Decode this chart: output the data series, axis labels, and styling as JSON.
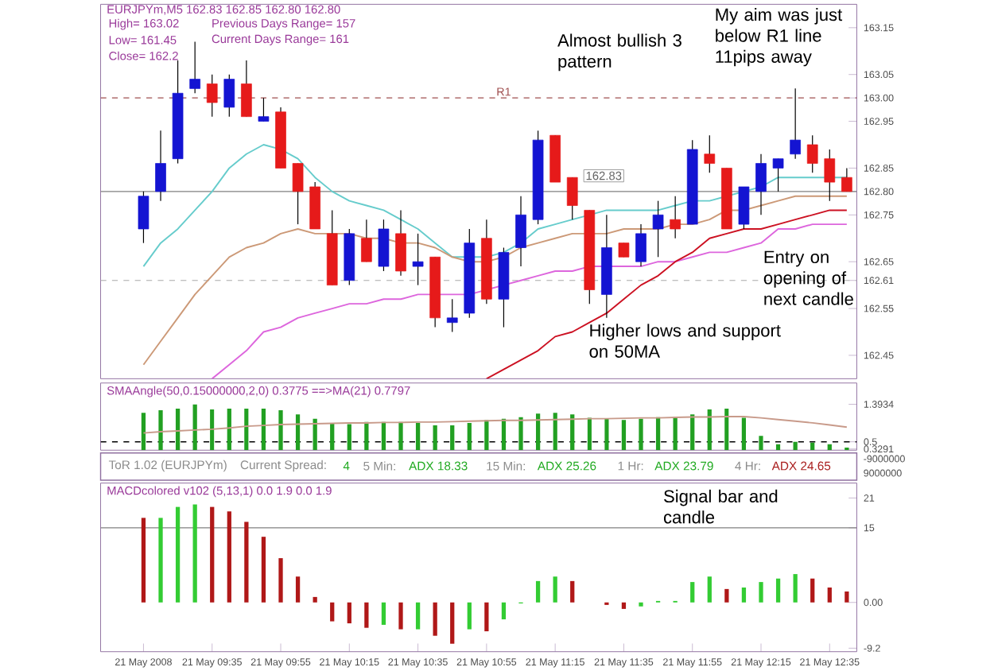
{
  "chart_data": [
    {
      "type": "candlestick",
      "title": "EURJPYm,M5  162.83 162.85 162.80 162.80",
      "categories": [
        null,
        null,
        null,
        null,
        null,
        null,
        null,
        null,
        null,
        null,
        null,
        null,
        null,
        null,
        null,
        null,
        null,
        null,
        null,
        null,
        null,
        null,
        null,
        null,
        null,
        null,
        null,
        null,
        null,
        null,
        null,
        null,
        null,
        null,
        null,
        null,
        null,
        null,
        null,
        null,
        null,
        null
      ],
      "ohlc": [
        [
          162.72,
          162.8,
          162.69,
          162.79
        ],
        [
          162.8,
          162.93,
          162.78,
          162.86
        ],
        [
          162.87,
          163.08,
          162.86,
          163.01
        ],
        [
          163.02,
          163.12,
          163.01,
          163.04
        ],
        [
          163.03,
          163.05,
          162.96,
          162.99
        ],
        [
          162.98,
          163.05,
          162.96,
          163.04
        ],
        [
          163.03,
          163.08,
          162.96,
          162.96
        ],
        [
          162.95,
          163.0,
          162.95,
          162.96
        ],
        [
          162.97,
          162.98,
          162.85,
          162.85
        ],
        [
          162.86,
          162.86,
          162.73,
          162.8
        ],
        [
          162.81,
          162.82,
          162.72,
          162.72
        ],
        [
          162.71,
          162.76,
          162.6,
          162.6
        ],
        [
          162.61,
          162.72,
          162.6,
          162.71
        ],
        [
          162.7,
          162.74,
          162.65,
          162.65
        ],
        [
          162.64,
          162.74,
          162.63,
          162.72
        ],
        [
          162.71,
          162.76,
          162.62,
          162.63
        ],
        [
          162.64,
          162.71,
          162.6,
          162.65
        ],
        [
          162.66,
          162.66,
          162.51,
          162.53
        ],
        [
          162.52,
          162.57,
          162.5,
          162.53
        ],
        [
          162.54,
          162.72,
          162.53,
          162.69
        ],
        [
          162.7,
          162.74,
          162.56,
          162.57
        ],
        [
          162.57,
          162.68,
          162.51,
          162.67
        ],
        [
          162.68,
          162.79,
          162.64,
          162.75
        ],
        [
          162.74,
          162.93,
          162.73,
          162.91
        ],
        [
          162.92,
          162.92,
          162.82,
          162.82
        ],
        [
          162.83,
          162.83,
          162.74,
          162.77
        ],
        [
          162.76,
          162.76,
          162.56,
          162.59
        ],
        [
          162.58,
          162.75,
          162.53,
          162.68
        ],
        [
          162.69,
          162.69,
          162.66,
          162.66
        ],
        [
          162.65,
          162.73,
          162.64,
          162.71
        ],
        [
          162.72,
          162.78,
          162.66,
          162.75
        ],
        [
          162.74,
          162.79,
          162.7,
          162.72
        ],
        [
          162.73,
          162.91,
          162.73,
          162.89
        ],
        [
          162.88,
          162.92,
          162.84,
          162.86
        ],
        [
          162.85,
          162.85,
          162.72,
          162.72
        ],
        [
          162.73,
          162.81,
          162.72,
          162.81
        ],
        [
          162.8,
          162.88,
          162.75,
          162.86
        ],
        [
          162.85,
          162.87,
          162.8,
          162.87
        ],
        [
          162.88,
          163.02,
          162.87,
          162.91
        ],
        [
          162.9,
          162.92,
          162.84,
          162.86
        ],
        [
          162.87,
          162.89,
          162.78,
          162.82
        ],
        [
          162.83,
          162.85,
          162.8,
          162.8
        ]
      ],
      "colors": [
        "#1414d2",
        "#1414d2",
        "#1414d2",
        "#1414d2",
        "#e61a1a",
        "#1414d2",
        "#e61a1a",
        "#1414d2",
        "#e61a1a",
        "#e61a1a",
        "#e61a1a",
        "#e61a1a",
        "#1414d2",
        "#e61a1a",
        "#1414d2",
        "#e61a1a",
        "#1414d2",
        "#e61a1a",
        "#1414d2",
        "#1414d2",
        "#e61a1a",
        "#1414d2",
        "#1414d2",
        "#1414d2",
        "#e61a1a",
        "#e61a1a",
        "#e61a1a",
        "#1414d2",
        "#e61a1a",
        "#1414d2",
        "#1414d2",
        "#e61a1a",
        "#1414d2",
        "#e61a1a",
        "#e61a1a",
        "#1414d2",
        "#1414d2",
        "#1414d2",
        "#1414d2",
        "#e61a1a",
        "#e61a1a",
        "#e61a1a"
      ],
      "series": [
        {
          "type": "line",
          "color": "#66cccc",
          "values": [
            162.64,
            162.69,
            162.72,
            162.76,
            162.8,
            162.85,
            162.88,
            162.9,
            162.89,
            162.87,
            162.83,
            162.8,
            162.78,
            162.77,
            162.76,
            162.74,
            162.72,
            162.69,
            162.66,
            162.66,
            162.66,
            162.67,
            162.69,
            162.72,
            162.73,
            162.74,
            162.75,
            162.76,
            162.76,
            162.76,
            162.76,
            162.77,
            162.78,
            162.78,
            162.79,
            162.8,
            162.81,
            162.83,
            162.83,
            162.83,
            162.83,
            162.83
          ]
        },
        {
          "type": "line",
          "color": "#cc9977",
          "values": [
            162.43,
            162.48,
            162.53,
            162.58,
            162.62,
            162.66,
            162.68,
            162.69,
            162.71,
            162.72,
            162.71,
            162.71,
            162.71,
            162.7,
            162.7,
            162.69,
            162.69,
            162.68,
            162.66,
            162.65,
            162.65,
            162.66,
            162.68,
            162.69,
            162.7,
            162.71,
            162.71,
            162.71,
            162.72,
            162.72,
            162.72,
            162.73,
            162.73,
            162.74,
            162.76,
            162.76,
            162.77,
            162.78,
            162.79,
            162.79,
            162.79,
            162.79
          ]
        },
        {
          "type": "line",
          "color": "#dd66dd",
          "values": [
            null,
            null,
            null,
            null,
            162.4,
            162.43,
            162.46,
            162.5,
            162.51,
            162.53,
            162.54,
            162.55,
            162.56,
            162.56,
            162.57,
            162.57,
            162.58,
            162.58,
            162.58,
            162.58,
            162.59,
            162.6,
            162.61,
            162.62,
            162.63,
            162.63,
            162.64,
            162.64,
            162.64,
            162.64,
            162.65,
            162.65,
            162.66,
            162.67,
            162.67,
            162.68,
            162.69,
            162.72,
            162.72,
            162.73,
            162.73,
            162.73
          ]
        },
        {
          "type": "line",
          "color": "#cc1122",
          "values": [
            null,
            null,
            null,
            null,
            null,
            null,
            null,
            null,
            null,
            null,
            null,
            null,
            null,
            null,
            null,
            null,
            null,
            null,
            null,
            null,
            162.4,
            162.42,
            162.44,
            162.46,
            162.49,
            162.5,
            162.52,
            162.54,
            162.57,
            162.6,
            162.62,
            162.65,
            162.67,
            162.7,
            162.71,
            162.72,
            162.72,
            162.73,
            162.74,
            162.75,
            162.76,
            162.76
          ]
        }
      ],
      "ylim": [
        162.4,
        163.2
      ],
      "yticks": [
        163.15,
        163.05,
        {
          "value": 163.0,
          "label": "163.00"
        },
        162.95,
        162.85,
        {
          "value": 162.8,
          "label": "162.80"
        },
        162.75,
        162.65,
        162.61,
        162.55,
        162.45
      ],
      "ref_lines": [
        {
          "axis": "y",
          "value": 163.0,
          "label": "R1",
          "color": "#a05050",
          "line_style": "dashed"
        },
        {
          "axis": "y",
          "value": 162.8,
          "color": "#808080",
          "line_style": "solid"
        },
        {
          "axis": "y",
          "value": 162.61,
          "color": "#c0c0c0",
          "line_style": "dashed"
        }
      ],
      "tick_labels": "y",
      "annotations": [
        "High= 163.02",
        "Low= 161.45",
        "Close= 162.2",
        "Previous Days Range= 157",
        "Current Days Range= 161",
        "Almost bullish 3 pattern",
        "My aim was just below R1 line 11pips away",
        "Higher lows and support on 50MA",
        "Entry on opening of next candle",
        "162.83"
      ]
    },
    {
      "type": "bar",
      "title": "SMAAngle(50,0.15000000,2,0) 0.3775  ==>MA(21) 0.7797",
      "categories": [
        null,
        null,
        null,
        null,
        null,
        null,
        null,
        null,
        null,
        null,
        null,
        null,
        null,
        null,
        null,
        null,
        null,
        null,
        null,
        null,
        null,
        null,
        null,
        null,
        null,
        null,
        null,
        null,
        null,
        null,
        null,
        null,
        null,
        null,
        null,
        null,
        null,
        null,
        null,
        null,
        null,
        null
      ],
      "series": [
        {
          "type": "bar",
          "color": "#22a022",
          "values": [
            1.19,
            1.25,
            1.29,
            1.39,
            1.27,
            1.29,
            1.29,
            1.29,
            1.25,
            1.15,
            1.05,
            0.95,
            0.92,
            0.97,
            0.97,
            0.97,
            0.95,
            0.89,
            0.89,
            0.95,
            1.02,
            1.05,
            1.09,
            1.17,
            1.19,
            1.15,
            1.07,
            1.05,
            1.02,
            1.05,
            1.09,
            1.09,
            1.15,
            1.27,
            1.29,
            1.07,
            0.64,
            0.44,
            0.5,
            0.48,
            0.44,
            0.36
          ]
        },
        {
          "type": "line",
          "color": "#c89a8a",
          "values": [
            0.71,
            0.74,
            0.76,
            0.78,
            0.8,
            0.83,
            0.87,
            0.89,
            0.91,
            0.92,
            0.93,
            0.94,
            0.95,
            0.95,
            0.96,
            0.96,
            0.97,
            0.97,
            0.98,
            0.99,
            1.0,
            1.01,
            1.01,
            1.02,
            1.03,
            1.04,
            1.05,
            1.05,
            1.06,
            1.07,
            1.07,
            1.08,
            1.09,
            1.09,
            1.1,
            1.1,
            1.07,
            1.03,
            0.99,
            0.95,
            0.9,
            0.85
          ]
        }
      ],
      "ylim": [
        0.3,
        1.9
      ],
      "yticks": [
        1.3934,
        0.5,
        0.3291
      ],
      "ref_lines": [
        {
          "axis": "y",
          "value": 0.5,
          "color": "#000000",
          "line_style": "dashed"
        }
      ],
      "tick_labels": "y"
    },
    {
      "type": "other",
      "annotations": [
        "ToR 1.02 (EURJPYm)",
        "Current Spread:",
        "4",
        "5 Min:",
        "ADX 18.33",
        "15 Min:",
        "ADX 25.26",
        "1 Hr:",
        "ADX 23.79",
        "4 Hr:",
        "ADX 24.65",
        "-9000000",
        "9000000"
      ]
    },
    {
      "type": "bar",
      "title": "MACDcolored v102 (5,13,1) 0.0 1.9 0.0 1.9",
      "categories": [
        "21 May 2008",
        null,
        null,
        null,
        "21 May 09:35",
        null,
        null,
        null,
        "21 May 09:55",
        null,
        null,
        null,
        "21 May 10:15",
        null,
        null,
        null,
        "21 May 10:35",
        null,
        null,
        null,
        "21 May 10:55",
        null,
        null,
        null,
        "21 May 11:15",
        null,
        null,
        null,
        "21 May 11:35",
        null,
        null,
        null,
        "21 May 11:55",
        null,
        null,
        null,
        "21 May 12:15",
        null,
        null,
        null,
        "21 May 12:35",
        null
      ],
      "values": [
        17.0,
        17.0,
        19.2,
        19.7,
        19.2,
        18.3,
        16.2,
        13.2,
        8.9,
        5.2,
        1.1,
        -3.8,
        -4.2,
        -5.1,
        -4.5,
        -5.4,
        -5.4,
        -6.7,
        -8.3,
        -5.4,
        -5.8,
        -3.4,
        -0.2,
        4.3,
        5.2,
        4.3,
        0,
        -0.5,
        -1.3,
        -0.8,
        0.3,
        0.3,
        4.1,
        5.2,
        2.7,
        3.0,
        4.1,
        4.8,
        5.7,
        4.8,
        3.0,
        2.2
      ],
      "colors": [
        "#b01818",
        "#33cc33",
        "#33cc33",
        "#33cc33",
        "#b01818",
        "#b01818",
        "#b01818",
        "#b01818",
        "#b01818",
        "#b01818",
        "#b01818",
        "#b01818",
        "#b01818",
        "#b01818",
        "#33cc33",
        "#b01818",
        "#33cc33",
        "#b01818",
        "#b01818",
        "#33cc33",
        "#b01818",
        "#33cc33",
        "#33cc33",
        "#33cc33",
        "#33cc33",
        "#b01818",
        "#b01818",
        "#b01818",
        "#b01818",
        "#33cc33",
        "#33cc33",
        "#33cc33",
        "#33cc33",
        "#33cc33",
        "#b01818",
        "#33cc33",
        "#33cc33",
        "#33cc33",
        "#33cc33",
        "#b01818",
        "#b01818",
        "#b01818"
      ],
      "ylim": [
        -9.9,
        24
      ],
      "yticks": [
        21,
        15,
        {
          "value": 0,
          "label": "0.00"
        },
        -9.2
      ],
      "ref_lines": [
        {
          "axis": "y",
          "value": 15,
          "color": "#808080",
          "line_style": "solid"
        }
      ],
      "annotations": [
        "Signal bar and candle"
      ]
    }
  ]
}
